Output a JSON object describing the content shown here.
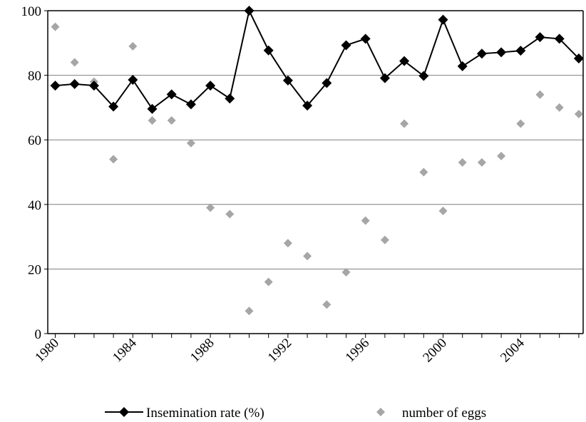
{
  "chart_data": {
    "type": "line",
    "x": [
      1980,
      1981,
      1982,
      1983,
      1984,
      1985,
      1986,
      1987,
      1988,
      1989,
      1990,
      1991,
      1992,
      1993,
      1994,
      1995,
      1996,
      1997,
      1998,
      1999,
      2000,
      2001,
      2002,
      2003,
      2004,
      2005,
      2006,
      2007
    ],
    "series": [
      {
        "name": "Insemination rate (%)",
        "style": "line-marker",
        "marker": "diamond",
        "color": "#000000",
        "values": [
          76.8,
          77.3,
          76.8,
          70.3,
          78.6,
          69.6,
          74.1,
          71.0,
          76.8,
          72.8,
          100,
          87.7,
          78.4,
          70.6,
          77.6,
          89.3,
          91.3,
          79.1,
          84.4,
          79.8,
          97.2,
          82.8,
          86.7,
          87.1,
          87.6,
          91.8,
          91.3,
          85.2
        ]
      },
      {
        "name": "number of eggs",
        "style": "marker-only",
        "marker": "diamond",
        "color": "#a6a6a6",
        "values": [
          95,
          84,
          78,
          54,
          89,
          66,
          66,
          59,
          39,
          37,
          7,
          16,
          28,
          24,
          9,
          19,
          35,
          29,
          65,
          50,
          38,
          53,
          53,
          55,
          65,
          74,
          70,
          68
        ]
      }
    ],
    "x_ticks": [
      "1980",
      "1984",
      "1988",
      "1992",
      "1996",
      "2000",
      "2004"
    ],
    "y_ticks": [
      "0",
      "20",
      "40",
      "60",
      "80",
      "100"
    ],
    "xlim": [
      1980,
      2007
    ],
    "ylim": [
      0,
      100
    ],
    "grid": "horizontal",
    "legend": "bottom"
  }
}
